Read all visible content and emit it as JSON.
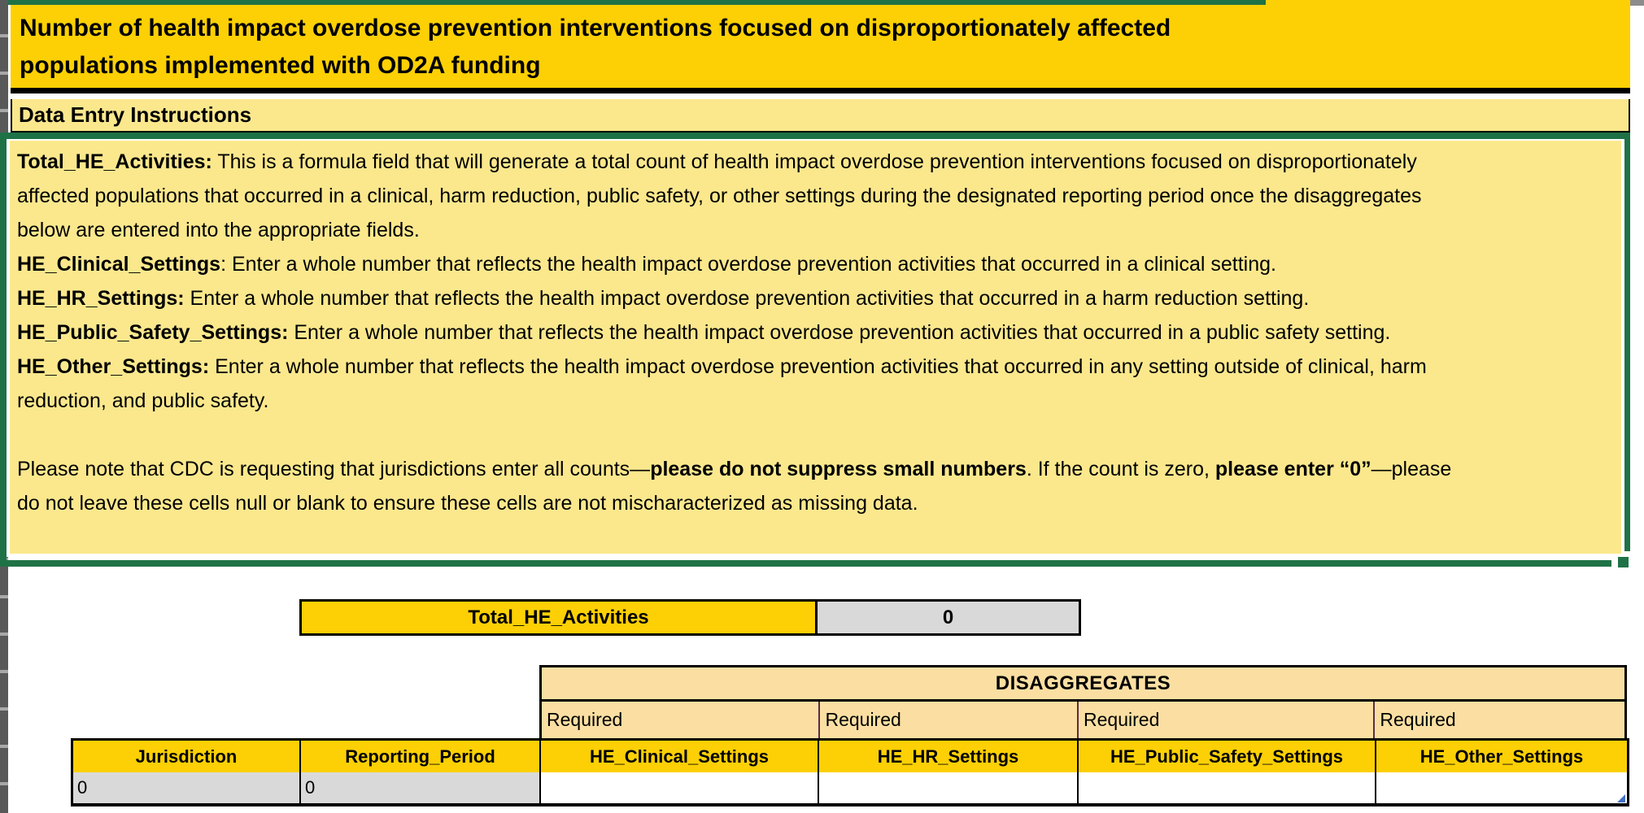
{
  "title": "Number of health impact overdose prevention interventions focused on disproportionately affected\npopulations implemented with OD2A funding",
  "section_header": "Data Entry Instructions",
  "instructions": {
    "paragraphs": [
      {
        "runs": [
          {
            "bold": true,
            "text": "Total_HE_Activities:"
          },
          {
            "bold": false,
            "text": " This is a formula field that will generate a total count of health impact overdose prevention interventions focused on disproportionately\naffected populations that occurred in a clinical, harm reduction, public safety, or other settings during the designated reporting period once the disaggregates\nbelow are entered into the appropriate fields."
          }
        ]
      },
      {
        "runs": [
          {
            "bold": true,
            "text": "HE_Clinical_Settings"
          },
          {
            "bold": false,
            "text": ": Enter a whole number that reflects the health impact overdose prevention activities that occurred in a clinical setting."
          }
        ]
      },
      {
        "runs": [
          {
            "bold": true,
            "text": "HE_HR_Settings:"
          },
          {
            "bold": false,
            "text": " Enter a whole number that reflects the health impact overdose prevention activities that occurred in a harm reduction setting."
          }
        ]
      },
      {
        "runs": [
          {
            "bold": true,
            "text": "HE_Public_Safety_Settings:"
          },
          {
            "bold": false,
            "text": " Enter a whole number that reflects the health impact overdose prevention activities that occurred in a public safety setting."
          }
        ]
      },
      {
        "runs": [
          {
            "bold": true,
            "text": "HE_Other_Settings:"
          },
          {
            "bold": false,
            "text": " Enter a whole number that reflects the health impact overdose prevention activities that occurred in any setting outside of clinical, harm\nreduction, and public safety."
          }
        ]
      },
      {
        "runs": [
          {
            "bold": false,
            "text": " "
          }
        ]
      },
      {
        "runs": [
          {
            "bold": false,
            "text": "Please note that CDC is requesting that jurisdictions enter all counts—"
          },
          {
            "bold": true,
            "text": "please do not suppress small numbers"
          },
          {
            "bold": false,
            "text": ". If the count is zero, "
          },
          {
            "bold": true,
            "text": "please enter “0”"
          },
          {
            "bold": false,
            "text": "—please\ndo not leave these cells null or blank to ensure these cells are not mischaracterized as missing data."
          }
        ]
      }
    ]
  },
  "total": {
    "label": "Total_HE_Activities",
    "value": "0"
  },
  "disaggregates": {
    "title": "DISAGGREGATES",
    "required_labels": [
      "Required",
      "Required",
      "Required",
      "Required"
    ]
  },
  "table": {
    "headers": [
      "Jurisdiction",
      "Reporting_Period",
      "HE_Clinical_Settings",
      "HE_HR_Settings",
      "HE_Public_Safety_Settings",
      "HE_Other_Settings"
    ],
    "row": [
      "0",
      "0",
      "",
      "",
      "",
      ""
    ]
  },
  "colors": {
    "gold": "#FCD004",
    "pale": "#FBE88D",
    "tan": "#FBDFA2",
    "green": "#1F7246",
    "gray": "#D9D9D9",
    "plum": "#5C2B45",
    "blue": "#4472C4"
  }
}
